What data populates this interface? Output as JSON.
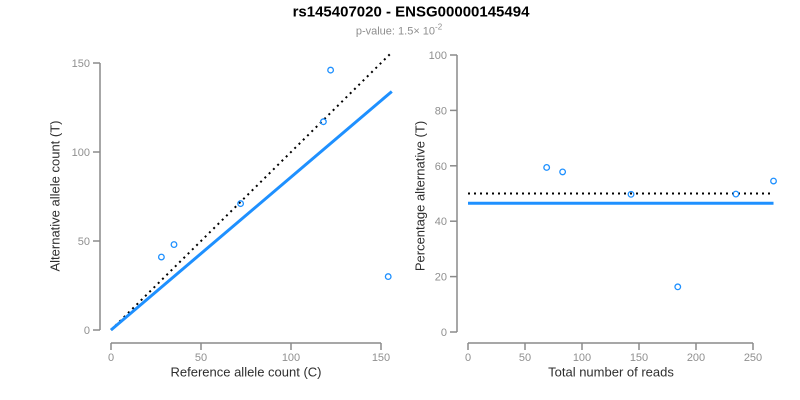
{
  "header": {
    "title": "rs145407020 - ENSG00000145494",
    "subtitle_text": "p-value: 1.5× 10",
    "subtitle_exponent": "-2"
  },
  "colors": {
    "accent_blue": "#1E90FF",
    "line_black": "#000000",
    "axis_gray": "#8a8a8a",
    "tick_label_gray": "#8f8f8f",
    "subtitle_gray": "#8e8e8e",
    "axis_title_color": "#2e2e2e",
    "background": "#ffffff"
  },
  "chart_data": [
    {
      "type": "scatter",
      "name": "alt-vs-ref-allele-count",
      "xlabel": "Reference allele count (C)",
      "ylabel": "Alternative allele count (T)",
      "xlim": [
        0,
        157
      ],
      "ylim": [
        0,
        157
      ],
      "x_ticks": [
        0,
        50,
        100,
        150
      ],
      "y_ticks": [
        0,
        50,
        100,
        150
      ],
      "grid": false,
      "legend": null,
      "points": [
        [
          28,
          41
        ],
        [
          35,
          48
        ],
        [
          72,
          71
        ],
        [
          118,
          117
        ],
        [
          122,
          146
        ],
        [
          154,
          30
        ]
      ],
      "lines": [
        {
          "name": "expected-identity",
          "style": "dotted",
          "color": "#000000",
          "x1": 0,
          "y1": 0,
          "x2": 155,
          "y2": 155
        },
        {
          "name": "fitted-ratio",
          "style": "solid",
          "color": "#1E90FF",
          "x1": 0,
          "y1": 0,
          "x2": 156,
          "y2": 134
        }
      ]
    },
    {
      "type": "scatter",
      "name": "pct-alternative-vs-total-reads",
      "xlabel": "Total number of reads",
      "ylabel": "Percentage alternative (T)",
      "xlim": [
        0,
        268
      ],
      "ylim": [
        0,
        100
      ],
      "x_ticks": [
        0,
        50,
        100,
        150,
        200,
        250
      ],
      "y_ticks": [
        0,
        20,
        40,
        60,
        80,
        100
      ],
      "grid": false,
      "legend": null,
      "points": [
        [
          69,
          59.4
        ],
        [
          83,
          57.8
        ],
        [
          143,
          49.7
        ],
        [
          184,
          16.3
        ],
        [
          235,
          49.8
        ],
        [
          268,
          54.5
        ]
      ],
      "lines": [
        {
          "name": "expected-50-percent",
          "style": "dotted",
          "color": "#000000",
          "x1": 0,
          "y1": 50,
          "x2": 268,
          "y2": 50
        },
        {
          "name": "fitted-percentage",
          "style": "solid",
          "color": "#1E90FF",
          "x1": 0,
          "y1": 46.5,
          "x2": 268,
          "y2": 46.5
        }
      ]
    }
  ]
}
